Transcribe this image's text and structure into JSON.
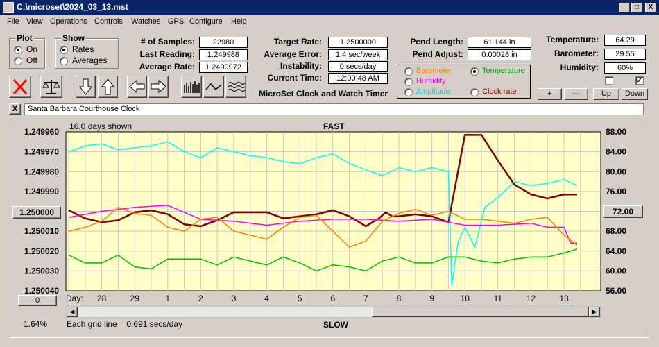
{
  "window": {
    "title": "C:\\microset\\2024_03_13.mst",
    "minimize": "_",
    "maximize": "□",
    "close": "X"
  },
  "menu": [
    "File",
    "View",
    "Operations",
    "Controls",
    "Watches",
    "GPS",
    "Configure",
    "Help"
  ],
  "plot_group": {
    "label": "Plot",
    "options": [
      "On",
      "Off"
    ],
    "selected": "On"
  },
  "show_group": {
    "label": "Show",
    "options": [
      "Rates",
      "Averages"
    ],
    "selected": "Rates"
  },
  "stats": {
    "samples_label": "# of Samples:",
    "samples": "22980",
    "last_reading_label": "Last Reading:",
    "last_reading": "1.249988",
    "average_rate_label": "Average Rate:",
    "average_rate": "1.2499972",
    "target_rate_label": "Target Rate:",
    "target_rate": "1.2500000",
    "average_error_label": "Average Error:",
    "average_error": "1.4 sec/week",
    "instability_label": "Instability:",
    "instability": "0 secs/day",
    "current_time_label": "Current Time:",
    "current_time": "12:00:48 AM",
    "pend_length_label": "Pend Length:",
    "pend_length": "61.144 in",
    "pend_adjust_label": "Pend Adjust:",
    "pend_adjust": "0.00028 in",
    "temperature_label": "Temperature:",
    "temperature": "64.29",
    "barometer_label": "Barometer:",
    "barometer": "29.55",
    "humidity_label": "Humidity:",
    "humidity": "60%"
  },
  "app_caption": "MicroSet Clock and Watch Timer",
  "sensor_legend": {
    "barometer": "Barometer",
    "temperature": "Temperature",
    "humidity": "Humidity",
    "amplitude": "Amplitude",
    "clock_rate": "Clock rate",
    "selected": "Temperature"
  },
  "adjust_buttons": {
    "plus": "+",
    "minus": "—",
    "up": "Up",
    "down": "Down"
  },
  "checkboxes": {
    "left_checked": false,
    "right_checked": true
  },
  "clock_name": "Santa Barbara Courthouse Clock",
  "clock_close": "X",
  "chart_texts": {
    "days_shown": "16.0 days shown",
    "fast": "FAST",
    "slow": "SLOW",
    "grid_note": "Each grid line = 0.691 secs/day",
    "percent": "1.64%",
    "day_label": "Day:",
    "center_value_left": "1.250000",
    "center_value_right": "72.00",
    "offset_button": "0"
  },
  "colors": {
    "barometer": "#ff8000",
    "temperature": "#00c000",
    "humidity": "#ff00ff",
    "amplitude": "#00ffff",
    "clock_rate": "#800000"
  },
  "chart_data": {
    "type": "line",
    "x_label": "Day:",
    "x_ticks": [
      "28",
      "29",
      "1",
      "2",
      "3",
      "4",
      "5",
      "6",
      "7",
      "8",
      "9",
      "10",
      "11",
      "12",
      "13"
    ],
    "x_range_days": [
      0,
      16
    ],
    "y_left_ticks": [
      "1.249960",
      "1.249970",
      "1.249980",
      "1.249990",
      "1.250000",
      "1.250010",
      "1.250020",
      "1.250030",
      "1.250040"
    ],
    "y_left_range": [
      1.24996,
      1.25004
    ],
    "y_right_ticks": [
      "88.00",
      "84.00",
      "80.00",
      "76.00",
      "72.00",
      "68.00",
      "64.00",
      "60.00",
      "56.00"
    ],
    "y_right_range": [
      56,
      88
    ],
    "series": [
      {
        "name": "Clock rate",
        "axis": "left",
        "color": "#800000",
        "days": [
          0,
          0.5,
          1,
          1.5,
          2,
          2.5,
          3,
          3.5,
          4,
          4.5,
          5,
          5.5,
          6,
          6.5,
          7,
          7.5,
          8,
          8.5,
          9,
          9.4,
          9.6,
          9.8,
          10,
          10.5,
          11,
          11.5,
          12,
          12.5,
          13,
          13.5,
          14,
          14.5,
          15,
          15.4
        ],
        "values": [
          1.25,
          1.250003,
          1.250006,
          1.250004,
          1.250001,
          1.249999,
          1.250002,
          1.250006,
          1.250008,
          1.250004,
          1.250001,
          1.25,
          1.250001,
          1.250003,
          1.250003,
          1.250001,
          1.25,
          1.250002,
          1.250008,
          1.250003,
          1.250001,
          1.250002,
          1.250003,
          1.250001,
          1.250003,
          1.250005,
          1.249962,
          1.249961,
          1.249975,
          1.249986,
          1.249992,
          1.249993,
          1.249992,
          1.249991
        ]
      },
      {
        "name": "Amplitude",
        "axis": "left",
        "color": "#00ffff",
        "days": [
          0,
          0.5,
          1,
          1.5,
          2,
          2.5,
          3,
          3.5,
          4,
          4.5,
          5,
          5.5,
          6,
          6.5,
          7,
          7.5,
          8,
          8.5,
          9,
          9.5,
          10,
          10.5,
          11,
          11.5,
          11.6,
          11.8,
          12,
          12.3,
          12.6,
          13,
          13.5,
          14,
          14.5,
          15,
          15.4
        ],
        "values": [
          1.24997,
          1.249967,
          1.249966,
          1.249969,
          1.249968,
          1.249967,
          1.249965,
          1.24997,
          1.249973,
          1.249968,
          1.24997,
          1.249972,
          1.249973,
          1.249975,
          1.249976,
          1.249973,
          1.249971,
          1.249976,
          1.249979,
          1.249982,
          1.249978,
          1.24998,
          1.249978,
          1.24998,
          1.250037,
          1.250015,
          1.250008,
          1.250018,
          1.249998,
          1.249993,
          1.249985,
          1.249987,
          1.249986,
          1.249984,
          1.249987
        ]
      },
      {
        "name": "Humidity",
        "axis": "left",
        "color": "#ff00ff",
        "days": [
          0,
          1,
          2,
          3,
          4,
          5,
          6,
          7,
          8,
          9,
          10,
          11,
          12,
          13,
          14,
          14.5,
          15,
          15.2,
          15.4
        ],
        "values": [
          1.250003,
          1.25,
          1.249998,
          1.249997,
          1.250004,
          1.250005,
          1.250007,
          1.250005,
          1.250004,
          1.250004,
          1.250005,
          1.250004,
          1.250007,
          1.250007,
          1.250006,
          1.250008,
          1.250008,
          1.250016,
          1.250016
        ]
      },
      {
        "name": "Barometer",
        "axis": "left",
        "color": "#ff8000",
        "days": [
          0,
          0.5,
          1,
          1.5,
          2,
          2.5,
          3,
          3.5,
          4,
          4.5,
          5,
          5.5,
          6,
          6.5,
          7,
          7.5,
          8,
          8.5,
          9,
          9.5,
          10,
          10.5,
          11,
          11.5,
          12,
          12.5,
          13,
          13.5,
          14,
          14.5,
          15,
          15.4
        ],
        "values": [
          1.25001,
          1.250008,
          1.250005,
          1.249998,
          1.250001,
          1.250002,
          1.250008,
          1.25001,
          1.250004,
          1.250003,
          1.25001,
          1.250012,
          1.250014,
          1.250008,
          1.250003,
          1.250002,
          1.25001,
          1.250018,
          1.250015,
          1.250005,
          1.250001,
          1.249999,
          1.250002,
          1.25,
          1.250004,
          1.250004,
          1.250005,
          1.250006,
          1.250004,
          1.250003,
          1.250012,
          1.250017
        ]
      },
      {
        "name": "Temperature",
        "axis": "left",
        "color": "#00c000",
        "days": [
          0,
          0.5,
          1,
          1.5,
          2,
          2.5,
          3,
          3.5,
          4,
          4.5,
          5,
          5.5,
          6,
          6.5,
          7,
          7.5,
          8,
          8.5,
          9,
          9.5,
          10,
          10.5,
          11,
          11.5,
          12,
          12.5,
          13,
          13.5,
          14,
          14.5,
          15,
          15.4
        ],
        "values": [
          1.250022,
          1.250026,
          1.250026,
          1.250022,
          1.250028,
          1.250029,
          1.250024,
          1.250024,
          1.250024,
          1.250027,
          1.250023,
          1.250025,
          1.250027,
          1.250023,
          1.250026,
          1.25003,
          1.250027,
          1.250028,
          1.25003,
          1.250025,
          1.250023,
          1.250026,
          1.250026,
          1.250023,
          1.250023,
          1.250025,
          1.250026,
          1.250024,
          1.250023,
          1.250023,
          1.250021,
          1.250019
        ]
      }
    ]
  }
}
